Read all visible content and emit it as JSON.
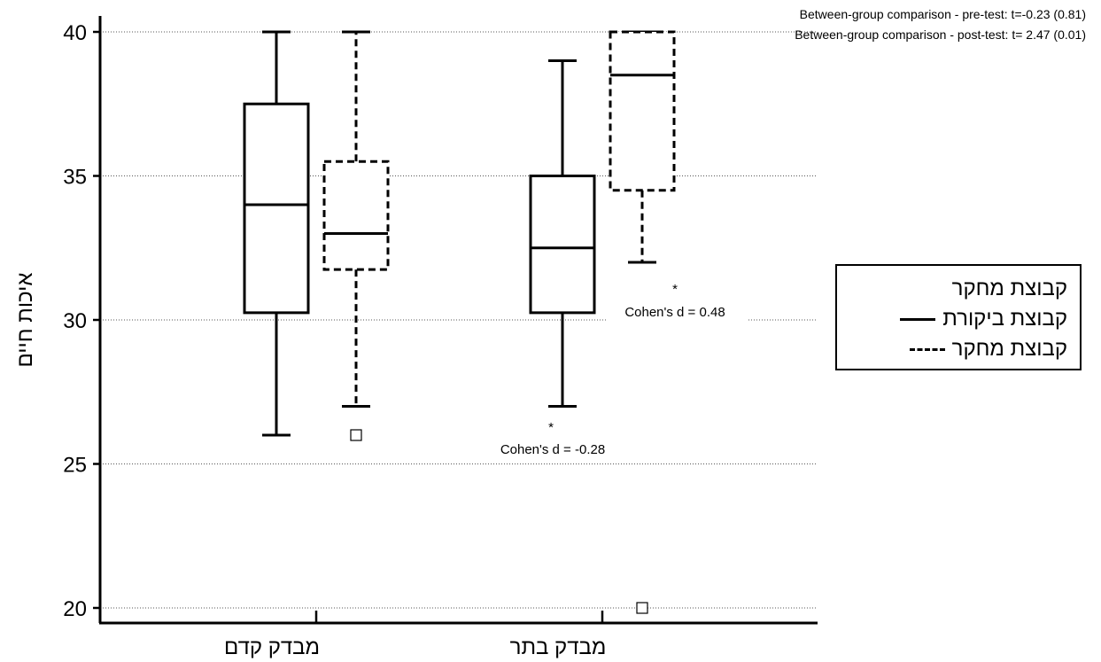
{
  "chart_data": {
    "type": "box",
    "categories": [
      "מבדק קדם",
      "מבדק בתר"
    ],
    "ylabel": "איכות חיים",
    "xlabel": "",
    "ylim": [
      19.5,
      40.5
    ],
    "yticks": [
      20,
      25,
      30,
      35,
      40
    ],
    "grid": "dotted horizontal",
    "series": [
      {
        "name": "קבוצת ביקורת",
        "line_style": "solid",
        "boxes": [
          {
            "category": "מבדק קדם",
            "min": 26,
            "q1": 30.25,
            "median": 34,
            "q3": 37.5,
            "max": 40,
            "outliers": []
          },
          {
            "category": "מבדק בתר",
            "min": 27,
            "q1": 30.25,
            "median": 32.5,
            "q3": 35,
            "max": 39,
            "outliers": []
          }
        ]
      },
      {
        "name": "קבוצת מחקר",
        "line_style": "dashed",
        "boxes": [
          {
            "category": "מבדק קדם",
            "min": 27,
            "q1": 31.75,
            "median": 33,
            "q3": 35.5,
            "max": 40,
            "outliers": [
              26
            ]
          },
          {
            "category": "מבדק בתר",
            "min": 32,
            "q1": 34.5,
            "median": 38.5,
            "q3": 40,
            "max": 40,
            "outliers": [
              20
            ]
          }
        ]
      }
    ],
    "annotations": {
      "comparison_pre": "Between-group comparison - pre-test: t=-0.23 (0.81)",
      "comparison_post": "Between-group comparison - post-test: t= 2.47 (0.01)",
      "cohen_control": "Cohen's d = -0.28",
      "cohen_research": "Cohen's d = 0.48",
      "asterisk": "*"
    },
    "legend": {
      "title": "קבוצת מחקר",
      "placement": "right",
      "entries": [
        "קבוצת ביקורת",
        "קבוצת מחקר"
      ]
    }
  }
}
